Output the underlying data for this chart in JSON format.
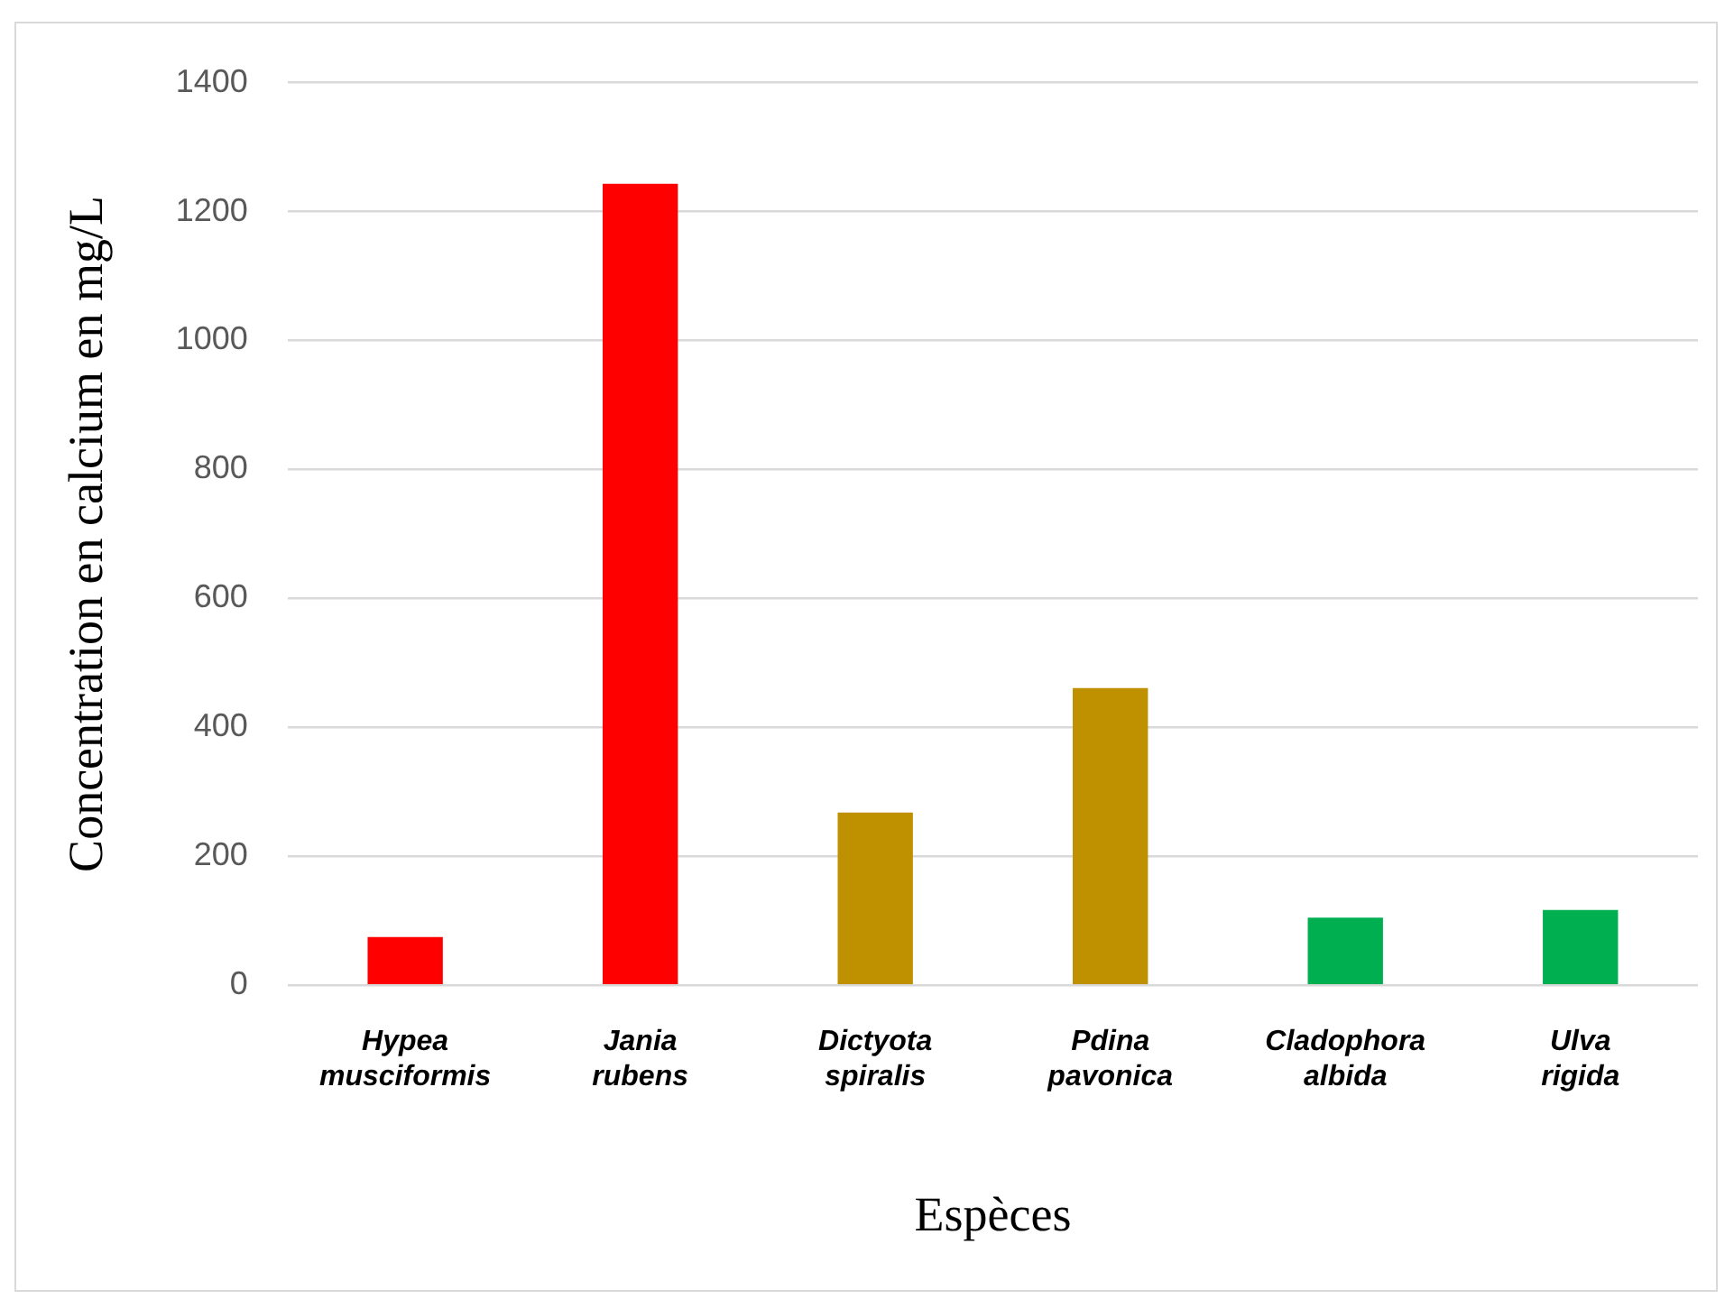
{
  "chart_data": {
    "type": "bar",
    "categories": [
      "Hypea musciformis",
      "Jania rubens",
      "Dictyota spiralis",
      "Pdina pavonica",
      "Cladophora albida",
      "Ulva rigida"
    ],
    "values": [
      75,
      1243,
      268,
      461,
      105,
      117
    ],
    "colors": [
      "#ff0000",
      "#ff0000",
      "#bf9000",
      "#bf9000",
      "#00b050",
      "#00b050"
    ],
    "xlabel": "Espèces",
    "ylabel": "Concentration en calcium en mg/L",
    "ylim": [
      0,
      1400
    ],
    "yticks": [
      0,
      200,
      400,
      600,
      800,
      1000,
      1200,
      1400
    ],
    "grid": "y"
  }
}
